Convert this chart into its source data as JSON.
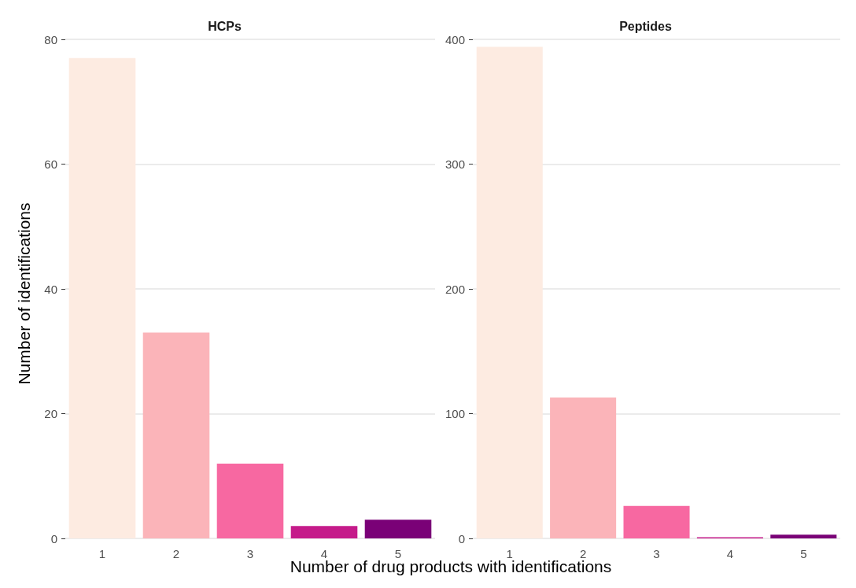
{
  "chart_data": [
    {
      "type": "bar",
      "title": "HCPs",
      "xlabel": "Number of drug products with identifications",
      "ylabel": "Number of identifications",
      "categories": [
        "1",
        "2",
        "3",
        "4",
        "5"
      ],
      "values": [
        77,
        33,
        12,
        2,
        3
      ],
      "colors": [
        "#fdebe1",
        "#fbb4b9",
        "#f768a1",
        "#c51b8a",
        "#7a0177"
      ],
      "ylim": [
        0,
        80
      ],
      "yticks": [
        0,
        20,
        40,
        60,
        80
      ],
      "grid": "y"
    },
    {
      "type": "bar",
      "title": "Peptides",
      "categories": [
        "1",
        "2",
        "3",
        "4",
        "5"
      ],
      "values": [
        394,
        113,
        26,
        1,
        3
      ],
      "colors": [
        "#fdebe1",
        "#fbb4b9",
        "#f768a1",
        "#c51b8a",
        "#7a0177"
      ],
      "ylim": [
        0,
        400
      ],
      "yticks": [
        0,
        100,
        200,
        300,
        400
      ],
      "grid": "y"
    }
  ]
}
